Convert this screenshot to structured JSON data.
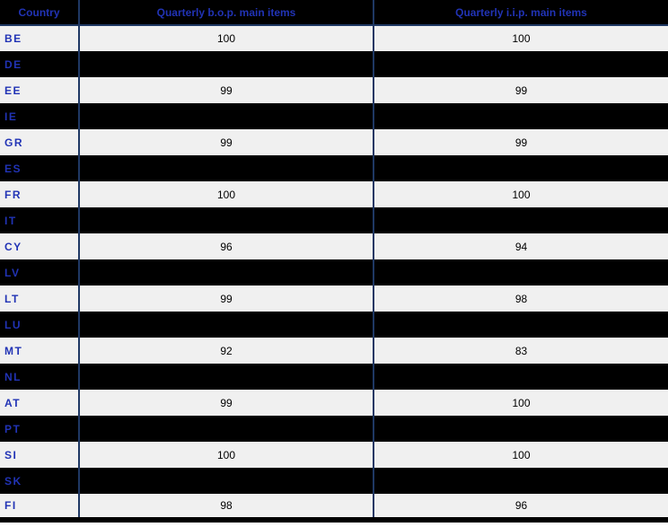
{
  "table": {
    "columns": [
      "Country",
      "Quarterly b.o.p. main items",
      "Quarterly i.i.p. main items"
    ],
    "rows": [
      {
        "country": "BE",
        "bop": "100",
        "iip": "100",
        "blackout": false
      },
      {
        "country": "DE",
        "bop": "",
        "iip": "",
        "blackout": true
      },
      {
        "country": "EE",
        "bop": "99",
        "iip": "99",
        "blackout": false
      },
      {
        "country": "IE",
        "bop": "",
        "iip": "",
        "blackout": true
      },
      {
        "country": "GR",
        "bop": "99",
        "iip": "99",
        "blackout": false
      },
      {
        "country": "ES",
        "bop": "",
        "iip": "",
        "blackout": true
      },
      {
        "country": "FR",
        "bop": "100",
        "iip": "100",
        "blackout": false
      },
      {
        "country": "IT",
        "bop": "",
        "iip": "",
        "blackout": true
      },
      {
        "country": "CY",
        "bop": "96",
        "iip": "94",
        "blackout": false
      },
      {
        "country": "LV",
        "bop": "",
        "iip": "",
        "blackout": true
      },
      {
        "country": "LT",
        "bop": "99",
        "iip": "98",
        "blackout": false
      },
      {
        "country": "LU",
        "bop": "",
        "iip": "",
        "blackout": true
      },
      {
        "country": "MT",
        "bop": "92",
        "iip": "83",
        "blackout": false
      },
      {
        "country": "NL",
        "bop": "",
        "iip": "",
        "blackout": true
      },
      {
        "country": "AT",
        "bop": "99",
        "iip": "100",
        "blackout": false
      },
      {
        "country": "PT",
        "bop": "",
        "iip": "",
        "blackout": true
      },
      {
        "country": "SI",
        "bop": "100",
        "iip": "100",
        "blackout": false
      },
      {
        "country": "SK",
        "bop": "",
        "iip": "",
        "blackout": true
      },
      {
        "country": "FI",
        "bop": "98",
        "iip": "96",
        "blackout": false
      }
    ]
  },
  "chart_data": {
    "type": "table",
    "columns": [
      "Country",
      "Quarterly b.o.p. main items",
      "Quarterly i.i.p. main items"
    ],
    "rows": [
      [
        "BE",
        100,
        100
      ],
      [
        "DE",
        null,
        null
      ],
      [
        "EE",
        99,
        99
      ],
      [
        "IE",
        null,
        null
      ],
      [
        "GR",
        99,
        99
      ],
      [
        "ES",
        null,
        null
      ],
      [
        "FR",
        100,
        100
      ],
      [
        "IT",
        null,
        null
      ],
      [
        "CY",
        96,
        94
      ],
      [
        "LV",
        null,
        null
      ],
      [
        "LT",
        99,
        98
      ],
      [
        "LU",
        null,
        null
      ],
      [
        "MT",
        92,
        83
      ],
      [
        "NL",
        null,
        null
      ],
      [
        "AT",
        99,
        100
      ],
      [
        "PT",
        null,
        null
      ],
      [
        "SI",
        100,
        100
      ],
      [
        "SK",
        null,
        null
      ],
      [
        "FI",
        98,
        96
      ]
    ],
    "notes": "Rows with null values are rendered as fully black (blacked-out) rows; only the country code is visible in blue.",
    "value_range": [
      0,
      100
    ]
  },
  "colors": {
    "header_bg": "#000000",
    "row_bg": "#F0F0F0",
    "blackout_row_bg": "#000000",
    "grid_blue": "#1F3864",
    "text_blue": "#2133B5",
    "value_text": "#000000"
  }
}
